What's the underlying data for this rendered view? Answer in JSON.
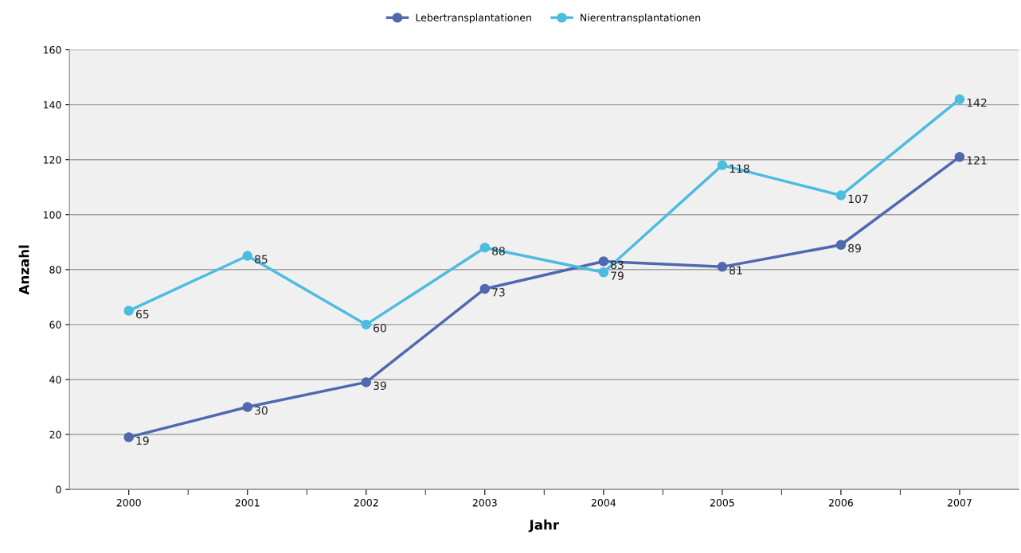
{
  "chart_data": {
    "type": "line",
    "xlabel": "Jahr",
    "ylabel": "Anzahl",
    "categories": [
      "2000",
      "2001",
      "2002",
      "2003",
      "2004",
      "2005",
      "2006",
      "2007"
    ],
    "series": [
      {
        "name": "Lebertransplantationen",
        "color": "#4f68ae",
        "values": [
          19,
          30,
          39,
          73,
          83,
          81,
          89,
          121
        ]
      },
      {
        "name": "Nierentransplantationen",
        "color": "#4cbce0",
        "values": [
          65,
          85,
          60,
          88,
          79,
          118,
          107,
          142
        ]
      }
    ],
    "ylim": [
      0,
      160
    ],
    "yticks": [
      0,
      20,
      40,
      60,
      80,
      100,
      120,
      140,
      160
    ],
    "grid": "y",
    "legend": "top",
    "marker": "circle",
    "line_style": "solid",
    "data_labels": true
  }
}
